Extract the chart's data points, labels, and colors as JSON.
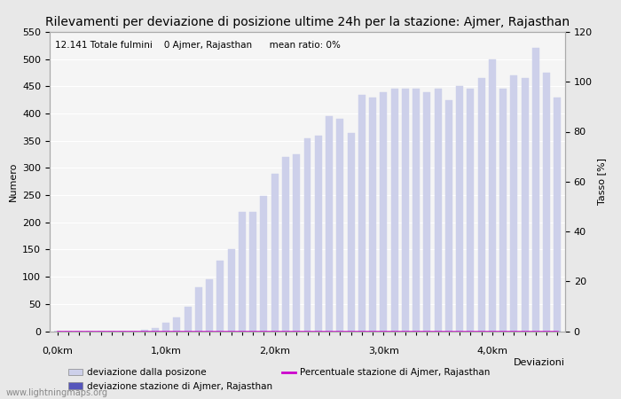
{
  "title": "Rilevamenti per deviazione di posizione ultime 24h per la stazione: Ajmer, Rajasthan",
  "subtitle": "12.141 Totale fulmini    0 Ajmer, Rajasthan      mean ratio: 0%",
  "ylabel_left": "Numero",
  "ylabel_right": "Tasso [%]",
  "xlabel": "Deviazioni",
  "watermark": "www.lightningmaps.org",
  "bar_color_light": "#cdd0ea",
  "bar_color_dark": "#5555bb",
  "line_color": "#cc00cc",
  "background_color": "#e8e8e8",
  "plot_bg_color": "#f5f5f5",
  "ylim_left": [
    0,
    550
  ],
  "ylim_right": [
    0,
    120
  ],
  "yticks_left": [
    0,
    50,
    100,
    150,
    200,
    250,
    300,
    350,
    400,
    450,
    500,
    550
  ],
  "yticks_right": [
    0,
    20,
    40,
    60,
    80,
    100,
    120
  ],
  "major_xtick_positions": [
    0,
    10,
    20,
    30,
    40
  ],
  "major_xtick_labels": [
    "0,0km",
    "1,0km",
    "2,0km",
    "3,0km",
    "4,0km"
  ],
  "n_bars": 47,
  "bar_values": [
    0,
    0,
    0,
    0,
    0,
    0,
    0,
    0,
    2,
    5,
    15,
    25,
    45,
    80,
    95,
    130,
    150,
    220,
    220,
    248,
    290,
    320,
    325,
    355,
    360,
    395,
    390,
    365,
    435,
    430,
    440,
    445,
    445,
    445,
    440,
    445,
    425,
    450,
    445,
    465,
    500,
    445,
    470,
    465,
    520,
    475,
    430
  ],
  "station_bar_values": [
    0,
    0,
    0,
    0,
    0,
    0,
    0,
    0,
    0,
    0,
    0,
    0,
    0,
    0,
    0,
    0,
    0,
    0,
    0,
    0,
    0,
    0,
    0,
    0,
    0,
    0,
    0,
    0,
    0,
    0,
    0,
    0,
    0,
    0,
    0,
    0,
    0,
    0,
    0,
    0,
    0,
    0,
    0,
    0,
    0,
    0,
    0
  ],
  "ratio_values": [
    0,
    0,
    0,
    0,
    0,
    0,
    0,
    0,
    0,
    0,
    0,
    0,
    0,
    0,
    0,
    0,
    0,
    0,
    0,
    0,
    0,
    0,
    0,
    0,
    0,
    0,
    0,
    0,
    0,
    0,
    0,
    0,
    0,
    0,
    0,
    0,
    0,
    0,
    0,
    0,
    0,
    0,
    0,
    0,
    0,
    0,
    0
  ],
  "legend_label_light": "deviazione dalla posizone",
  "legend_label_dark": "deviazione stazione di Ajmer, Rajasthan",
  "legend_label_line": "Percentuale stazione di Ajmer, Rajasthan",
  "title_fontsize": 10,
  "axis_label_fontsize": 8,
  "tick_fontsize": 8,
  "subtitle_fontsize": 7.5,
  "legend_fontsize": 7.5,
  "watermark_fontsize": 7
}
